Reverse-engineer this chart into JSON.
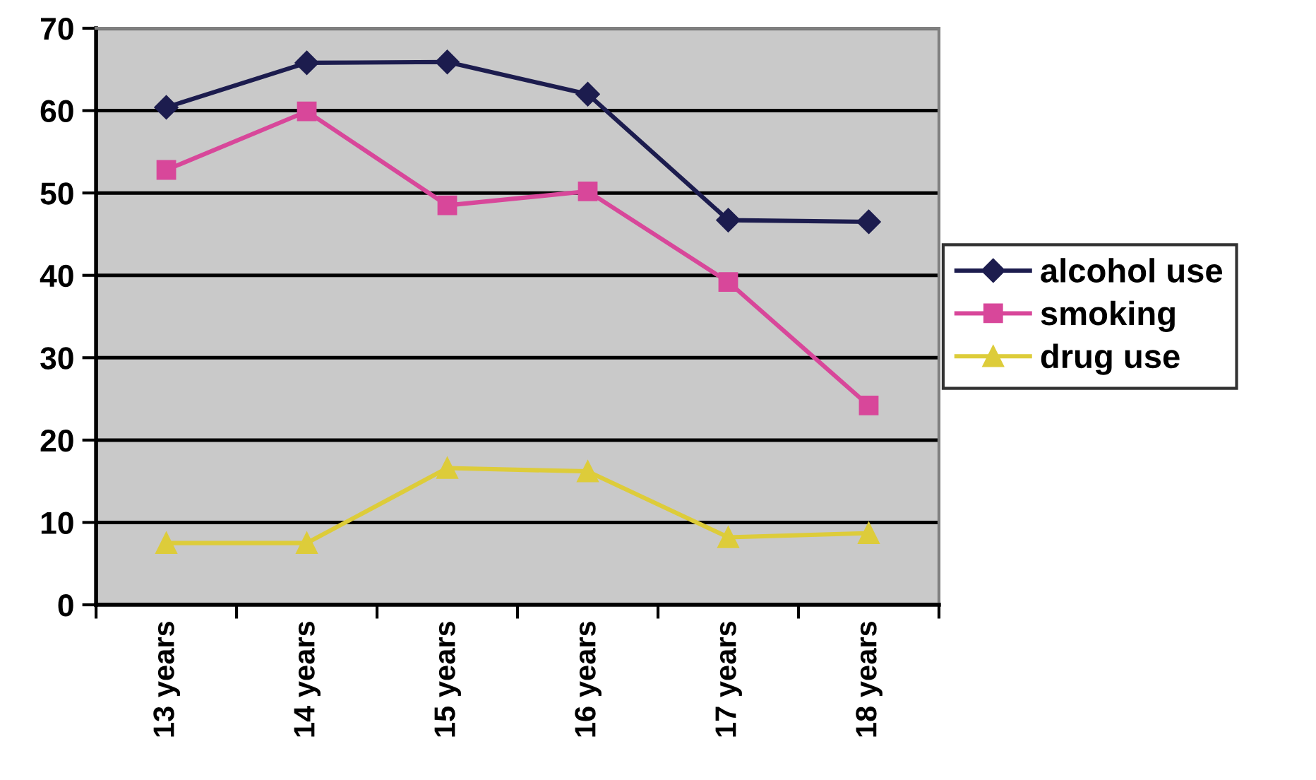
{
  "chart_data": {
    "type": "line",
    "categories": [
      "13 years",
      "14 years",
      "15 years",
      "16 years",
      "17 years",
      "18 years"
    ],
    "series": [
      {
        "name": "alcohol use",
        "color": "#1c1c4e",
        "marker": "diamond",
        "values": [
          60.4,
          65.8,
          65.9,
          62.0,
          46.7,
          46.5
        ]
      },
      {
        "name": "smoking",
        "color": "#d8479a",
        "marker": "square",
        "values": [
          52.8,
          59.9,
          48.5,
          50.2,
          39.2,
          24.2
        ]
      },
      {
        "name": "drug use",
        "color": "#ddcc3a",
        "marker": "triangle",
        "values": [
          7.5,
          7.5,
          16.6,
          16.2,
          8.2,
          8.7
        ]
      }
    ],
    "ylim": [
      0,
      70
    ],
    "yticks": [
      0,
      10,
      20,
      30,
      40,
      50,
      60,
      70
    ],
    "grid": "y",
    "legend": "right",
    "line_style": "solid"
  }
}
